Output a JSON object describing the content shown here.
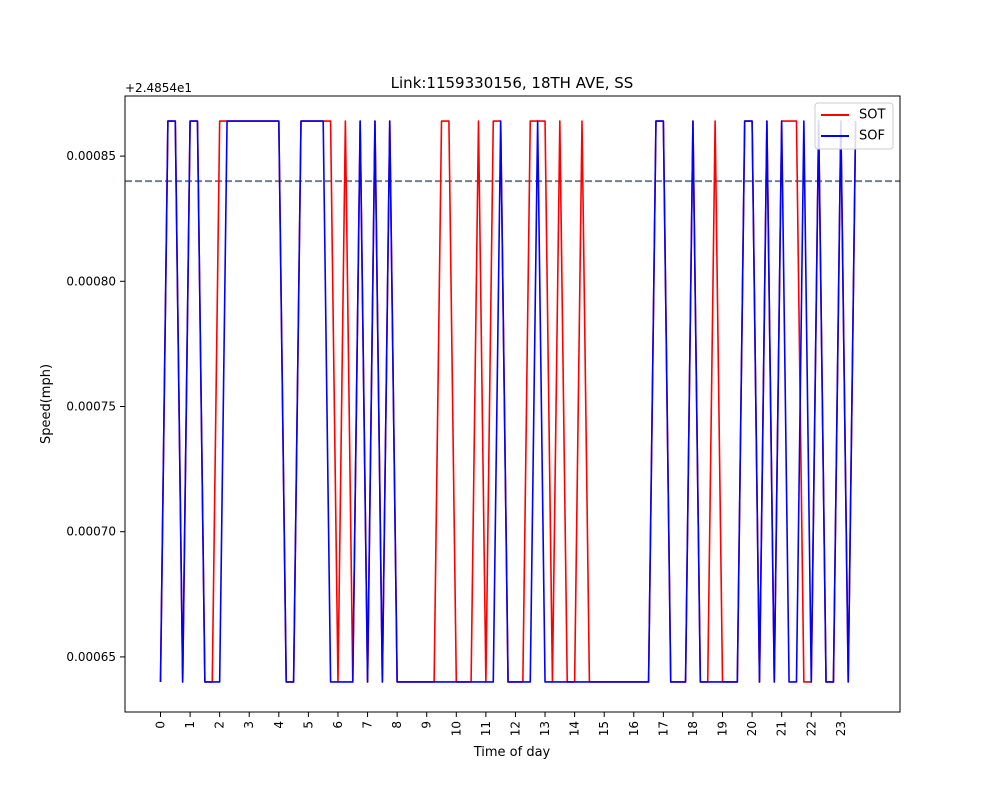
{
  "chart_data": {
    "type": "line",
    "title": "Link:1159330156, 18TH AVE, SS",
    "xlabel": "Time of day",
    "ylabel": "Speed(mph)",
    "offset_label": "+2.4854e1",
    "xlim": [
      -1.2,
      25.0
    ],
    "ylim": [
      0.000628,
      0.000874
    ],
    "x_ticks": [
      0,
      1,
      2,
      3,
      4,
      5,
      6,
      7,
      8,
      9,
      10,
      11,
      12,
      13,
      14,
      15,
      16,
      17,
      18,
      19,
      20,
      21,
      22,
      23
    ],
    "x_tick_labels": [
      "0",
      "1",
      "2",
      "3",
      "4",
      "5",
      "6",
      "7",
      "8",
      "9",
      "10",
      "11",
      "12",
      "13",
      "14",
      "15",
      "16",
      "17",
      "18",
      "19",
      "20",
      "21",
      "22",
      "23"
    ],
    "y_ticks": [
      0.00065,
      0.0007,
      0.00075,
      0.0008,
      0.00085
    ],
    "y_tick_labels": [
      "0.00065",
      "0.00070",
      "0.00075",
      "0.00080",
      "0.00085"
    ],
    "reference_line": {
      "y": 0.00084,
      "color": "#708090",
      "style": "dashed"
    },
    "legend": {
      "position": "top-right"
    },
    "series": [
      {
        "name": "SOT",
        "color": "#ff0000",
        "x": [
          0.0,
          0.25,
          0.5,
          0.75,
          1.0,
          1.25,
          1.5,
          1.75,
          2.0,
          2.25,
          2.5,
          2.75,
          3.0,
          3.25,
          3.5,
          3.75,
          4.0,
          4.25,
          4.5,
          4.75,
          5.0,
          5.25,
          5.5,
          5.75,
          6.0,
          6.25,
          6.5,
          6.75,
          7.0,
          7.25,
          7.5,
          7.75,
          8.0,
          8.25,
          8.5,
          8.75,
          9.0,
          9.25,
          9.5,
          9.75,
          10.0,
          10.25,
          10.5,
          10.75,
          11.0,
          11.25,
          11.5,
          11.75,
          12.0,
          12.25,
          12.5,
          12.75,
          13.0,
          13.25,
          13.5,
          13.75,
          14.0,
          14.25,
          14.5,
          14.75,
          15.0,
          15.25,
          15.5,
          15.75,
          16.0,
          16.25,
          16.5,
          16.75,
          17.0,
          17.25,
          17.5,
          17.75,
          18.0,
          18.25,
          18.5,
          18.75,
          19.0,
          19.25,
          19.5,
          19.75,
          20.0,
          20.25,
          20.5,
          20.75,
          21.0,
          21.25,
          21.5,
          21.75,
          22.0,
          22.25,
          22.5,
          22.75,
          23.0,
          23.25,
          23.5
        ],
        "values": [
          0.00064,
          0.000864,
          0.000864,
          0.00064,
          0.000864,
          0.000864,
          0.00064,
          0.00064,
          0.000864,
          0.000864,
          0.000864,
          0.000864,
          0.000864,
          0.000864,
          0.000864,
          0.000864,
          0.000864,
          0.00064,
          0.00064,
          0.000864,
          0.000864,
          0.000864,
          0.000864,
          0.000864,
          0.00064,
          0.000864,
          0.00064,
          0.000864,
          0.00064,
          0.000864,
          0.00064,
          0.000864,
          0.00064,
          0.00064,
          0.00064,
          0.00064,
          0.00064,
          0.00064,
          0.000864,
          0.000864,
          0.00064,
          0.00064,
          0.00064,
          0.000864,
          0.00064,
          0.000864,
          0.000864,
          0.00064,
          0.00064,
          0.00064,
          0.000864,
          0.000864,
          0.000864,
          0.00064,
          0.000864,
          0.00064,
          0.00064,
          0.000864,
          0.00064,
          0.00064,
          0.00064,
          0.00064,
          0.00064,
          0.00064,
          0.00064,
          0.00064,
          0.00064,
          0.000864,
          0.000864,
          0.00064,
          0.00064,
          0.00064,
          0.000864,
          0.00064,
          0.00064,
          0.000864,
          0.00064,
          0.00064,
          0.00064,
          0.000864,
          0.000864,
          0.00064,
          0.000864,
          0.00064,
          0.000864,
          0.000864,
          0.000864,
          0.00064,
          0.00064,
          0.000864,
          0.00064,
          0.00064,
          0.000864,
          0.00064,
          0.000864
        ]
      },
      {
        "name": "SOF",
        "color": "#0000ff",
        "x": [
          0.0,
          0.25,
          0.5,
          0.75,
          1.0,
          1.25,
          1.5,
          1.75,
          2.0,
          2.25,
          2.5,
          2.75,
          3.0,
          3.25,
          3.5,
          3.75,
          4.0,
          4.25,
          4.5,
          4.75,
          5.0,
          5.25,
          5.5,
          5.75,
          6.0,
          6.25,
          6.5,
          6.75,
          7.0,
          7.25,
          7.5,
          7.75,
          8.0,
          8.25,
          8.5,
          8.75,
          9.0,
          9.25,
          9.5,
          9.75,
          10.0,
          10.25,
          10.5,
          10.75,
          11.0,
          11.25,
          11.5,
          11.75,
          12.0,
          12.25,
          12.5,
          12.75,
          13.0,
          13.25,
          13.5,
          13.75,
          14.0,
          14.25,
          14.5,
          14.75,
          15.0,
          15.25,
          15.5,
          15.75,
          16.0,
          16.25,
          16.5,
          16.75,
          17.0,
          17.25,
          17.5,
          17.75,
          18.0,
          18.25,
          18.5,
          18.75,
          19.0,
          19.25,
          19.5,
          19.75,
          20.0,
          20.25,
          20.5,
          20.75,
          21.0,
          21.25,
          21.5,
          21.75,
          22.0,
          22.25,
          22.5,
          22.75,
          23.0,
          23.25,
          23.5
        ],
        "values": [
          0.00064,
          0.000864,
          0.000864,
          0.00064,
          0.000864,
          0.000864,
          0.00064,
          0.00064,
          0.00064,
          0.000864,
          0.000864,
          0.000864,
          0.000864,
          0.000864,
          0.000864,
          0.000864,
          0.000864,
          0.00064,
          0.00064,
          0.000864,
          0.000864,
          0.000864,
          0.000864,
          0.00064,
          0.00064,
          0.00064,
          0.00064,
          0.000864,
          0.00064,
          0.000864,
          0.00064,
          0.000864,
          0.00064,
          0.00064,
          0.00064,
          0.00064,
          0.00064,
          0.00064,
          0.00064,
          0.00064,
          0.00064,
          0.00064,
          0.00064,
          0.00064,
          0.00064,
          0.00064,
          0.000864,
          0.00064,
          0.00064,
          0.00064,
          0.00064,
          0.000864,
          0.00064,
          0.00064,
          0.00064,
          0.00064,
          0.00064,
          0.00064,
          0.00064,
          0.00064,
          0.00064,
          0.00064,
          0.00064,
          0.00064,
          0.00064,
          0.00064,
          0.00064,
          0.000864,
          0.000864,
          0.00064,
          0.00064,
          0.00064,
          0.000864,
          0.00064,
          0.00064,
          0.00064,
          0.00064,
          0.00064,
          0.00064,
          0.000864,
          0.000864,
          0.00064,
          0.000864,
          0.00064,
          0.000864,
          0.00064,
          0.00064,
          0.000864,
          0.00064,
          0.000864,
          0.00064,
          0.00064,
          0.000864,
          0.00064,
          0.000864
        ]
      }
    ]
  }
}
